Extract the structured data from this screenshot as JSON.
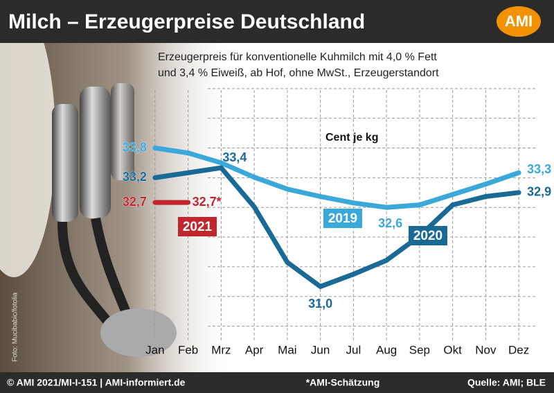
{
  "chart_data": {
    "type": "line",
    "title": "Milch – Erzeugerpreise Deutschland",
    "logo": "AMI",
    "subtitle": [
      "Erzeugerpreis für konventionelle Kuhmilch mit 4,0 % Fett",
      "und 3,4 % Eiweiß, ab Hof, ohne MwSt., Erzeugerstandort"
    ],
    "y_axis_label": "Cent je kg",
    "photo_credit": "Foto: Mucibabic/fotolia",
    "footer": {
      "left": "© AMI 2021/MI-I-151 | AMI-informiert.de",
      "center": "*AMI-Schätzung",
      "right": "Quelle: AMI; BLE"
    },
    "categories": [
      "Jan",
      "Feb",
      "Mrz",
      "Apr",
      "Mai",
      "Jun",
      "Jul",
      "Aug",
      "Sep",
      "Okt",
      "Nov",
      "Dez"
    ],
    "series": [
      {
        "name": "2019",
        "color": "#3aa8d8",
        "values": [
          33.8,
          33.7,
          33.5,
          33.21,
          32.97,
          32.82,
          32.69,
          32.6,
          32.65,
          32.86,
          33.07,
          33.3
        ],
        "value_labels": [
          "33,8",
          null,
          null,
          null,
          null,
          null,
          null,
          "32,6",
          null,
          null,
          null,
          "33,3"
        ]
      },
      {
        "name": "2020",
        "color": "#1a6a96",
        "values": [
          33.2,
          33.3,
          33.4,
          32.61,
          31.49,
          31.0,
          31.25,
          31.53,
          32.02,
          32.65,
          32.82,
          32.9
        ],
        "value_labels": [
          "33,2",
          null,
          "33,4",
          null,
          null,
          "31,0",
          null,
          null,
          null,
          null,
          null,
          "32,9"
        ]
      },
      {
        "name": "2021",
        "color": "#c0272d",
        "values": [
          32.7,
          32.7,
          null,
          null,
          null,
          null,
          null,
          null,
          null,
          null,
          null,
          null
        ],
        "value_labels": [
          "32,7",
          "32,7*",
          null,
          null,
          null,
          null,
          null,
          null,
          null,
          null,
          null,
          null
        ]
      }
    ],
    "ylim": [
      29.9,
      35.6
    ],
    "yticks": [
      30.2,
      30.8,
      31.4,
      32.0,
      32.6,
      33.2,
      33.8,
      34.4,
      35.0
    ],
    "grid": true
  }
}
